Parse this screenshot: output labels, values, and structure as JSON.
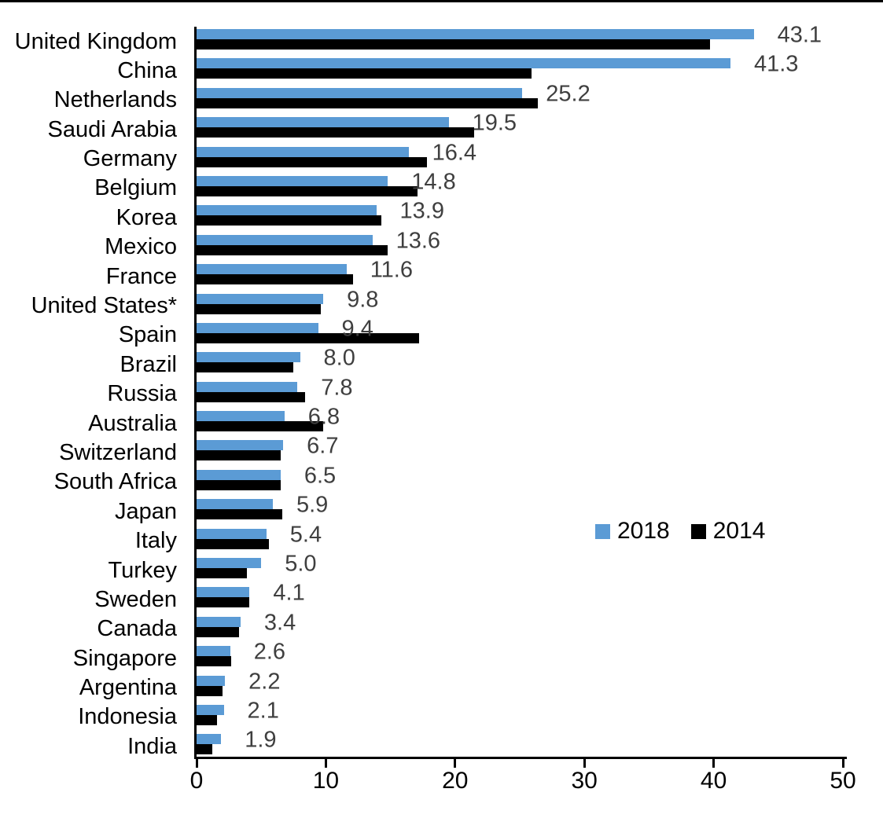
{
  "page": {
    "background": "#ffffff",
    "top_border_color": "#000000",
    "axis_color": "#000000",
    "value_label_color": "#3f3f3f"
  },
  "chart_data": {
    "type": "bar",
    "orientation": "horizontal",
    "title": "",
    "xlabel": "",
    "ylabel": "",
    "grid": false,
    "xlim": [
      0,
      50
    ],
    "xticks": [
      0,
      10,
      20,
      30,
      40,
      50
    ],
    "categories": [
      "United Kingdom",
      "China",
      "Netherlands",
      "Saudi Arabia",
      "Germany",
      "Belgium",
      "Korea",
      "Mexico",
      "France",
      "United States*",
      "Spain",
      "Brazil",
      "Russia",
      "Australia",
      "Switzerland",
      "South Africa",
      "Japan",
      "Italy",
      "Turkey",
      "Sweden",
      "Canada",
      "Singapore",
      "Argentina",
      "Indonesia",
      "India"
    ],
    "series": [
      {
        "name": "2018",
        "color": "#5B9BD5",
        "values": [
          43.1,
          41.3,
          25.2,
          19.5,
          16.4,
          14.8,
          13.9,
          13.6,
          11.6,
          9.8,
          9.4,
          8.0,
          7.8,
          6.8,
          6.7,
          6.5,
          5.9,
          5.4,
          5.0,
          4.1,
          3.4,
          2.6,
          2.2,
          2.1,
          1.9
        ],
        "data_labels_shown": true
      },
      {
        "name": "2014",
        "color": "#000000",
        "values": [
          39.7,
          25.9,
          26.4,
          21.5,
          17.8,
          17.1,
          14.3,
          14.8,
          12.1,
          9.6,
          17.2,
          7.5,
          8.4,
          9.8,
          6.5,
          6.5,
          6.6,
          5.6,
          3.9,
          4.1,
          3.3,
          2.7,
          2.0,
          1.6,
          1.2
        ],
        "data_labels_shown": false
      }
    ],
    "legend": {
      "position": "center-right",
      "entries": [
        "2018",
        "2014"
      ]
    }
  }
}
